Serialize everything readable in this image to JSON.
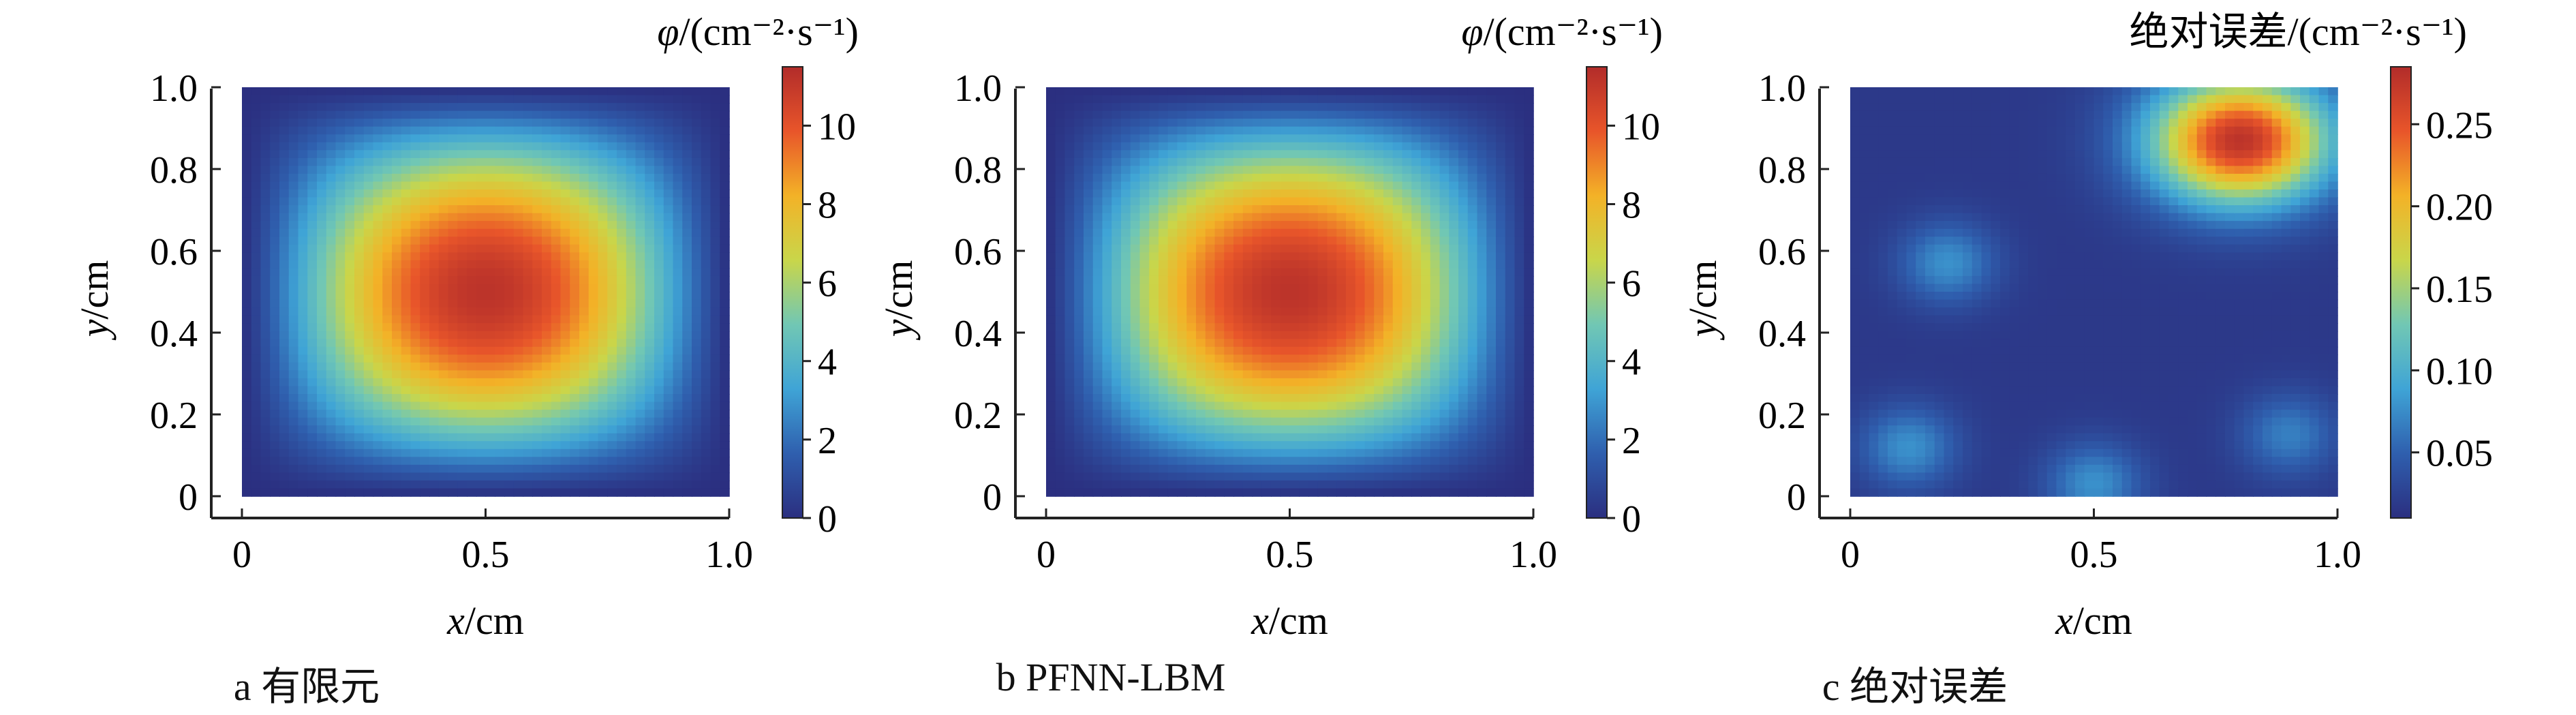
{
  "chart_data": [
    {
      "type": "heatmap",
      "caption": "a 有限元",
      "colorbar_title": "φ/(cm⁻²·s⁻¹)",
      "xlabel": "x/cm",
      "ylabel": "y/cm",
      "x_ticks": [
        "0",
        "0.5",
        "1.0"
      ],
      "x_tick_values": [
        0,
        0.5,
        1.0
      ],
      "y_ticks": [
        "0",
        "0.2",
        "0.4",
        "0.6",
        "0.8",
        "1.0"
      ],
      "y_tick_values": [
        0,
        0.2,
        0.4,
        0.6,
        0.8,
        1.0
      ],
      "xlim": [
        0,
        1.0
      ],
      "ylim": [
        0,
        1.0
      ],
      "colorbar_ticks": [
        "0",
        "2",
        "4",
        "6",
        "8",
        "10"
      ],
      "colorbar_tick_values": [
        0,
        2,
        4,
        6,
        8,
        10
      ],
      "colorbar_range": [
        0,
        11.5
      ],
      "colormap": "jet",
      "field": "flux_peak_center",
      "peak_value": 11.2,
      "peak_location": [
        0.5,
        0.5
      ]
    },
    {
      "type": "heatmap",
      "caption": "b PFNN-LBM",
      "colorbar_title": "φ/(cm⁻²·s⁻¹)",
      "xlabel": "x/cm",
      "ylabel": "y/cm",
      "x_ticks": [
        "0",
        "0.5",
        "1.0"
      ],
      "x_tick_values": [
        0,
        0.5,
        1.0
      ],
      "y_ticks": [
        "0",
        "0.2",
        "0.4",
        "0.6",
        "0.8",
        "1.0"
      ],
      "y_tick_values": [
        0,
        0.2,
        0.4,
        0.6,
        0.8,
        1.0
      ],
      "xlim": [
        0,
        1.0
      ],
      "ylim": [
        0,
        1.0
      ],
      "colorbar_ticks": [
        "0",
        "2",
        "4",
        "6",
        "8",
        "10"
      ],
      "colorbar_tick_values": [
        0,
        2,
        4,
        6,
        8,
        10
      ],
      "colorbar_range": [
        0,
        11.5
      ],
      "colormap": "jet",
      "field": "flux_peak_center",
      "peak_value": 11.2,
      "peak_location": [
        0.5,
        0.5
      ]
    },
    {
      "type": "heatmap",
      "caption": "c 绝对误差",
      "colorbar_title": "绝对误差/(cm⁻²·s⁻¹)",
      "xlabel": "x/cm",
      "ylabel": "y/cm",
      "x_ticks": [
        "0",
        "0.5",
        "1.0"
      ],
      "x_tick_values": [
        0,
        0.5,
        1.0
      ],
      "y_ticks": [
        "0",
        "0.2",
        "0.4",
        "0.6",
        "0.8",
        "1.0"
      ],
      "y_tick_values": [
        0,
        0.2,
        0.4,
        0.6,
        0.8,
        1.0
      ],
      "xlim": [
        0,
        1.0
      ],
      "ylim": [
        0,
        1.0
      ],
      "colorbar_ticks": [
        "0.05",
        "0.10",
        "0.15",
        "0.20",
        "0.25"
      ],
      "colorbar_tick_values": [
        0.05,
        0.1,
        0.15,
        0.2,
        0.25
      ],
      "colorbar_range": [
        0.01,
        0.285
      ],
      "colormap": "jet",
      "field": "absolute_error",
      "peak_value": 0.28,
      "peak_location": [
        0.8,
        0.87
      ],
      "secondary_bumps": [
        {
          "x": 0.2,
          "y": 0.57,
          "value": 0.08
        },
        {
          "x": 0.12,
          "y": 0.12,
          "value": 0.08
        },
        {
          "x": 0.9,
          "y": 0.15,
          "value": 0.07
        },
        {
          "x": 0.5,
          "y": 0.03,
          "value": 0.08
        }
      ]
    }
  ],
  "colors": {
    "jet_stops": [
      "#2b2f80",
      "#2f5fae",
      "#3fa4d6",
      "#71c7b4",
      "#c9d64a",
      "#f3b227",
      "#e8552a",
      "#b22c2a"
    ]
  }
}
